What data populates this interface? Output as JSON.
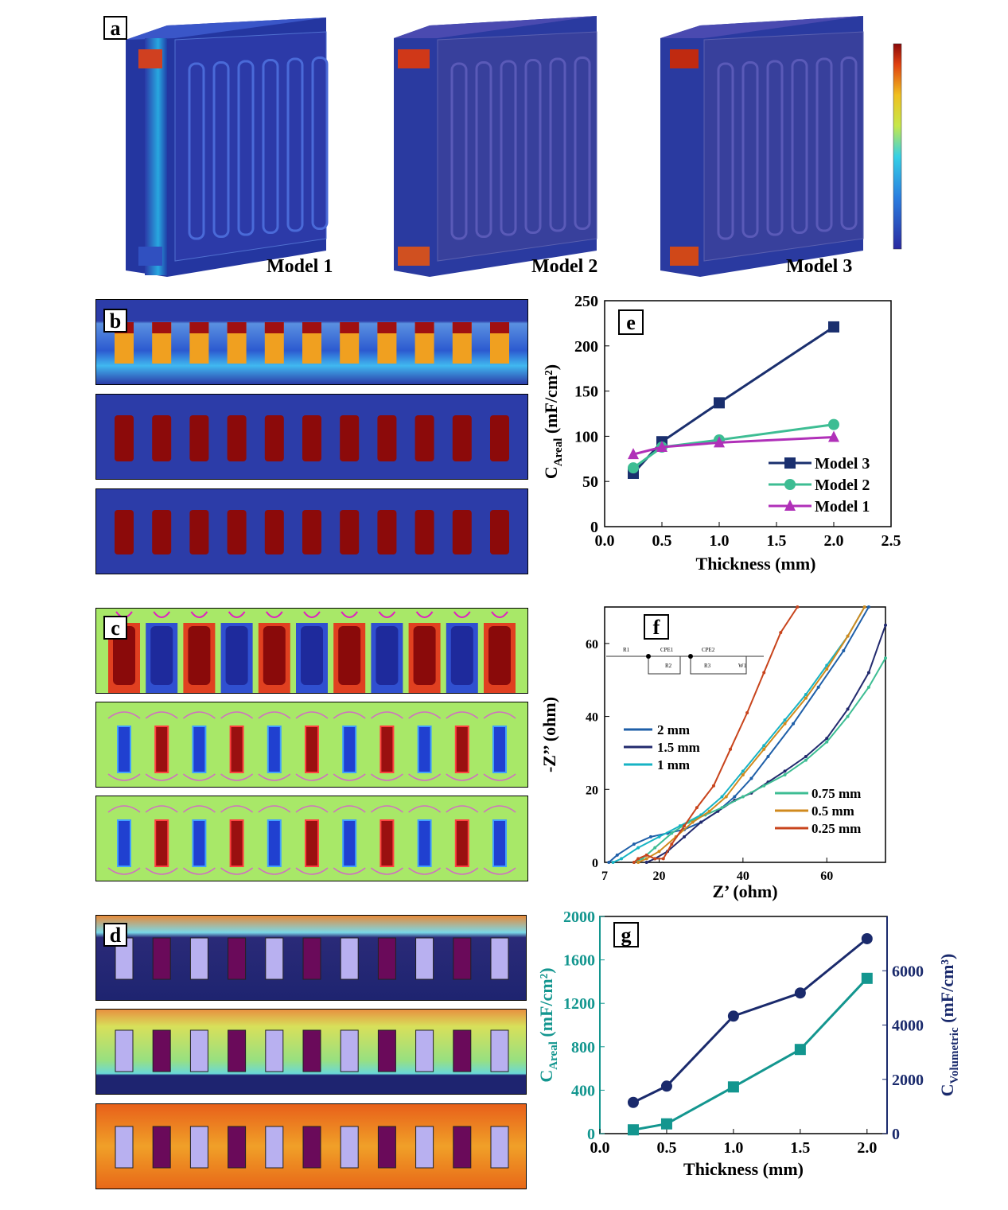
{
  "panels": {
    "a": {
      "label": "a",
      "models": [
        "Model 1",
        "Model 2",
        "Model 3"
      ]
    },
    "b": {
      "label": "b"
    },
    "c": {
      "label": "c"
    },
    "d": {
      "label": "d"
    }
  },
  "chart_data": [
    {
      "panel": "e",
      "type": "line",
      "xlabel": "Thickness (mm)",
      "ylabel": "C",
      "ylabel_sub": "Areal",
      "ylabel_unit": " (mF/cm²)",
      "xlim": [
        0.0,
        2.5
      ],
      "ylim": [
        0,
        250
      ],
      "xticks": [
        "0.0",
        "0.5",
        "1.0",
        "1.5",
        "2.0",
        "2.5"
      ],
      "yticks": [
        "0",
        "50",
        "100",
        "150",
        "200",
        "250"
      ],
      "legend_position": "bottom-right",
      "x": [
        0.25,
        0.5,
        1.0,
        2.0
      ],
      "series": [
        {
          "name": "Model 3",
          "values": [
            59,
            94,
            137,
            221
          ],
          "color": "#1a2f6e",
          "marker": "square"
        },
        {
          "name": "Model 2",
          "values": [
            65,
            88,
            96,
            113
          ],
          "color": "#3dbd93",
          "marker": "circle"
        },
        {
          "name": "Model 1",
          "values": [
            80,
            88,
            93,
            99
          ],
          "color": "#b030b8",
          "marker": "triangle"
        }
      ]
    },
    {
      "panel": "f",
      "type": "line",
      "xlabel": "Z’ (ohm)",
      "ylabel": "-Z’’ (ohm)",
      "xlim": [
        7,
        74
      ],
      "ylim": [
        0,
        70
      ],
      "xticks": [
        "7",
        "20",
        "40",
        "60"
      ],
      "yticks": [
        "0",
        "20",
        "40",
        "60"
      ],
      "circuit_labels": [
        "R1",
        "CPE1",
        "R2",
        "CPE2",
        "R3",
        "W1"
      ],
      "legend_position": "left and bottom-right",
      "series": [
        {
          "name": "2 mm",
          "color": "#1f5fa8",
          "x": [
            8,
            10,
            14,
            18,
            22,
            26,
            30,
            34,
            38,
            42,
            46,
            52,
            58,
            64,
            70
          ],
          "y": [
            0,
            2,
            5,
            7,
            8,
            9,
            11,
            14,
            18,
            23,
            29,
            38,
            48,
            58,
            70
          ]
        },
        {
          "name": "1.5 mm",
          "color": "#222a6e",
          "x": [
            17,
            19,
            22,
            26,
            30,
            34,
            38,
            42,
            46,
            50,
            55,
            60,
            65,
            70,
            74
          ],
          "y": [
            0,
            1,
            3,
            7,
            11,
            14,
            17,
            19,
            22,
            25,
            29,
            34,
            42,
            52,
            65
          ]
        },
        {
          "name": "1 mm",
          "color": "#17b3c4",
          "x": [
            9,
            11,
            15,
            20,
            25,
            30,
            35,
            40,
            45,
            50,
            55,
            60,
            65,
            69
          ],
          "y": [
            0,
            1,
            4,
            7,
            10,
            13,
            18,
            25,
            32,
            39,
            46,
            54,
            62,
            70
          ]
        },
        {
          "name": "0.75 mm",
          "color": "#3dbd93",
          "x": [
            14,
            16,
            19,
            23,
            27,
            31,
            35,
            40,
            45,
            50,
            55,
            60,
            65,
            70,
            74
          ],
          "y": [
            0,
            1,
            4,
            8,
            11,
            13,
            15,
            18,
            21,
            24,
            28,
            33,
            40,
            48,
            56
          ]
        },
        {
          "name": "0.5 mm",
          "color": "#d08a1e",
          "x": [
            15,
            17,
            20,
            24,
            28,
            32,
            36,
            40,
            45,
            50,
            55,
            60,
            65,
            69
          ],
          "y": [
            0,
            1,
            3,
            7,
            11,
            14,
            18,
            24,
            31,
            38,
            45,
            53,
            62,
            70
          ]
        },
        {
          "name": "0.25 mm",
          "color": "#c8441c",
          "x": [
            14,
            15,
            17,
            19,
            21,
            23,
            26,
            29,
            33,
            37,
            41,
            45,
            49,
            53
          ],
          "y": [
            0,
            1,
            2,
            1,
            1,
            5,
            10,
            15,
            21,
            31,
            41,
            52,
            63,
            70
          ]
        }
      ]
    },
    {
      "panel": "g",
      "type": "line",
      "xlabel": "Thickness (mm)",
      "ylabel_left": "C",
      "ylabel_left_sub": "Areal",
      "ylabel_left_unit": " (mF/cm²)",
      "ylabel_right": "C",
      "ylabel_right_sub": "Volumetric",
      "ylabel_right_unit": " (mF/cm³)",
      "xlim": [
        0.0,
        2.15
      ],
      "ylim_left": [
        0,
        2000
      ],
      "ylim_right": [
        0,
        8000
      ],
      "xticks": [
        "0.0",
        "0.5",
        "1.0",
        "1.5",
        "2.0"
      ],
      "yticks_left": [
        "0",
        "400",
        "800",
        "1200",
        "1600",
        "2000"
      ],
      "yticks_right": [
        "0",
        "2000",
        "4000",
        "6000"
      ],
      "x": [
        0.25,
        0.5,
        1.0,
        1.5,
        2.0
      ],
      "series": [
        {
          "name": "C Areal",
          "axis": "left",
          "values": [
            35,
            90,
            430,
            775,
            1430
          ],
          "color": "#13968f",
          "marker": "square"
        },
        {
          "name": "C Volumetric",
          "axis": "right",
          "values": [
            1150,
            1750,
            4330,
            5180,
            7180
          ],
          "color": "#1a2a6c",
          "marker": "circle"
        }
      ]
    }
  ]
}
